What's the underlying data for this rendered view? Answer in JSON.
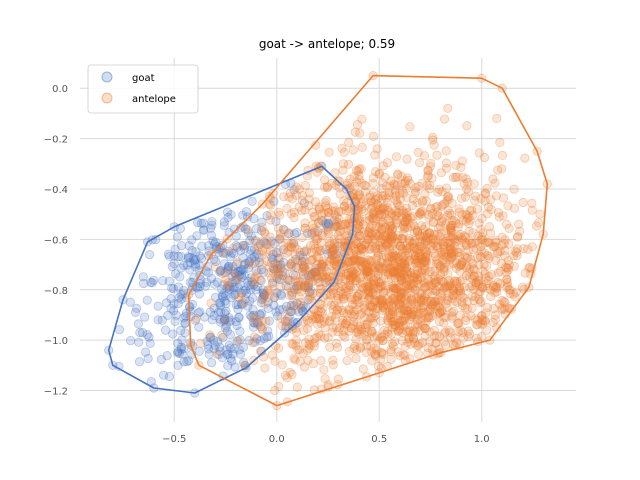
{
  "chart_data": {
    "type": "scatter",
    "title": "goat -> antelope; 0.59",
    "xlabel": "",
    "ylabel": "",
    "xlim": [
      -0.96,
      1.46
    ],
    "ylim": [
      -1.325,
      0.12
    ],
    "x_ticks": [
      -0.5,
      0.0,
      0.5,
      1.0
    ],
    "x_tick_labels": [
      "−0.5",
      "0.0",
      "0.5",
      "1.0"
    ],
    "y_ticks": [
      0.0,
      -0.2,
      -0.4,
      -0.6,
      -0.8,
      -1.0,
      -1.2
    ],
    "y_tick_labels": [
      "0.0",
      "−0.2",
      "−0.4",
      "−0.6",
      "−0.8",
      "−1.0",
      "−1.2"
    ],
    "grid": true,
    "legend_position": "top-left",
    "legend": [
      "goat",
      "antelope"
    ],
    "series": [
      {
        "name": "goat",
        "color": "#4472c4",
        "point_count": 500,
        "cluster_center": [
          -0.2,
          -0.82
        ],
        "cluster_spread": [
          0.3,
          0.19
        ],
        "hull": [
          [
            0.22,
            -0.31
          ],
          [
            0.34,
            -0.4
          ],
          [
            0.38,
            -0.47
          ],
          [
            0.37,
            -0.58
          ],
          [
            0.28,
            -0.77
          ],
          [
            0.1,
            -0.93
          ],
          [
            -0.15,
            -1.11
          ],
          [
            -0.4,
            -1.21
          ],
          [
            -0.6,
            -1.19
          ],
          [
            -0.8,
            -1.1
          ],
          [
            -0.82,
            -1.04
          ],
          [
            -0.75,
            -0.84
          ],
          [
            -0.63,
            -0.61
          ],
          [
            -0.5,
            -0.55
          ]
        ]
      },
      {
        "name": "antelope",
        "color": "#ed7d31",
        "point_count": 2000,
        "cluster_center": [
          0.55,
          -0.72
        ],
        "cluster_spread": [
          0.33,
          0.22
        ],
        "hull": [
          [
            0.47,
            0.05
          ],
          [
            1.0,
            0.04
          ],
          [
            1.1,
            0.0
          ],
          [
            1.27,
            -0.25
          ],
          [
            1.32,
            -0.38
          ],
          [
            1.3,
            -0.58
          ],
          [
            1.23,
            -0.79
          ],
          [
            1.04,
            -1.0
          ],
          [
            0.8,
            -1.05
          ],
          [
            0.5,
            -1.13
          ],
          [
            0.0,
            -1.26
          ],
          [
            -0.38,
            -1.1
          ],
          [
            -0.42,
            -1.02
          ],
          [
            -0.43,
            -0.82
          ],
          [
            -0.32,
            -0.66
          ],
          [
            -0.07,
            -0.46
          ]
        ]
      }
    ]
  }
}
